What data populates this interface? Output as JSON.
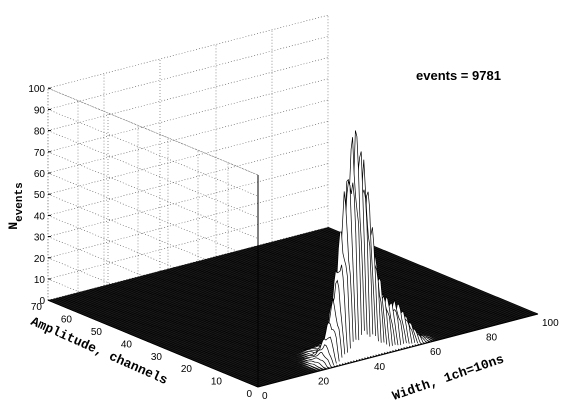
{
  "chart_data": {
    "type": "surface3d",
    "annotation": "events = 9781",
    "zlabel_main": "N",
    "zlabel_sub": "events",
    "xlabel": "Width, 1ch=10ns",
    "ylabel": "Amplitude, channels",
    "zlim": [
      0,
      100
    ],
    "z_ticks": [
      "0",
      "10",
      "20",
      "30",
      "40",
      "50",
      "60",
      "70",
      "80",
      "90",
      "100"
    ],
    "xlim": [
      0,
      100
    ],
    "x_ticks": [
      "0",
      "20",
      "40",
      "60",
      "80",
      "100"
    ],
    "ylim": [
      0,
      70
    ],
    "y_ticks": [
      "0",
      "10",
      "20",
      "30",
      "40",
      "50",
      "60",
      "70"
    ],
    "grid": true,
    "peak": {
      "width_channel": 38,
      "amplitude_channel": 3,
      "max_events": 98
    },
    "ridge_along_amplitude": [
      {
        "amplitude": 0,
        "events": 12
      },
      {
        "amplitude": 1,
        "events": 60
      },
      {
        "amplitude": 2,
        "events": 88
      },
      {
        "amplitude": 3,
        "events": 98
      },
      {
        "amplitude": 4,
        "events": 80
      },
      {
        "amplitude": 5,
        "events": 55
      },
      {
        "amplitude": 6,
        "events": 30
      },
      {
        "amplitude": 8,
        "events": 8
      },
      {
        "amplitude": 12,
        "events": 1
      }
    ]
  }
}
